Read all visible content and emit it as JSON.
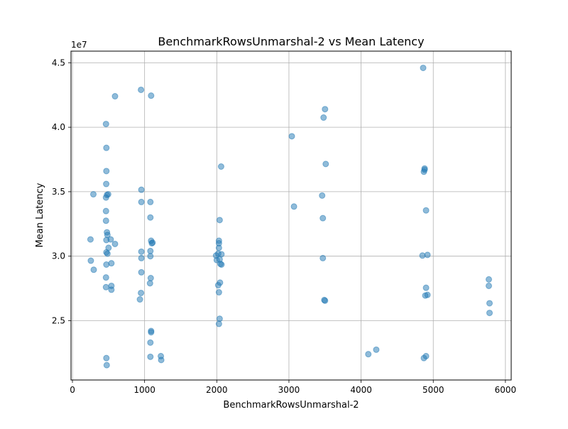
{
  "chart_data": {
    "type": "scatter",
    "title": "BenchmarkRowsUnmarshal-2 vs Mean Latency",
    "xlabel": "BenchmarkRowsUnmarshal-2",
    "ylabel": "Mean Latency",
    "y_multiplier_label": "1e7",
    "xlim": [
      -20,
      6080
    ],
    "ylim": [
      20400000,
      45900000
    ],
    "x_ticks": [
      0,
      1000,
      2000,
      3000,
      4000,
      5000,
      6000
    ],
    "x_tick_labels": [
      "0",
      "1000",
      "2000",
      "3000",
      "4000",
      "5000",
      "6000"
    ],
    "y_ticks": [
      25000000,
      30000000,
      35000000,
      40000000,
      45000000
    ],
    "y_tick_labels": [
      "2.5",
      "3.0",
      "3.5",
      "4.0",
      "4.5"
    ],
    "grid": true,
    "marker_color": "#1f77b4",
    "marker_alpha": 0.5,
    "series": [
      {
        "points": [
          [
            250,
            31300000
          ],
          [
            255,
            29650000
          ],
          [
            290,
            34800000
          ],
          [
            295,
            28950000
          ],
          [
            465,
            40250000
          ],
          [
            470,
            38400000
          ],
          [
            470,
            36600000
          ],
          [
            468,
            35600000
          ],
          [
            478,
            34750000
          ],
          [
            465,
            34550000
          ],
          [
            465,
            33500000
          ],
          [
            465,
            32750000
          ],
          [
            478,
            31850000
          ],
          [
            485,
            31650000
          ],
          [
            470,
            31250000
          ],
          [
            500,
            30650000
          ],
          [
            470,
            30300000
          ],
          [
            485,
            30200000
          ],
          [
            470,
            29350000
          ],
          [
            465,
            28350000
          ],
          [
            465,
            27600000
          ],
          [
            470,
            22100000
          ],
          [
            475,
            21550000
          ],
          [
            495,
            34800000
          ],
          [
            530,
            31300000
          ],
          [
            540,
            29450000
          ],
          [
            540,
            27700000
          ],
          [
            540,
            27400000
          ],
          [
            590,
            30950000
          ],
          [
            590,
            42400000
          ],
          [
            950,
            42900000
          ],
          [
            955,
            35150000
          ],
          [
            955,
            34200000
          ],
          [
            955,
            30350000
          ],
          [
            955,
            29850000
          ],
          [
            955,
            28750000
          ],
          [
            950,
            27150000
          ],
          [
            935,
            26650000
          ],
          [
            1090,
            42450000
          ],
          [
            1080,
            34200000
          ],
          [
            1080,
            33000000
          ],
          [
            1090,
            31200000
          ],
          [
            1110,
            31050000
          ],
          [
            1100,
            31000000
          ],
          [
            1080,
            30400000
          ],
          [
            1080,
            30000000
          ],
          [
            1085,
            28300000
          ],
          [
            1075,
            27900000
          ],
          [
            1090,
            24200000
          ],
          [
            1090,
            24100000
          ],
          [
            1080,
            23300000
          ],
          [
            1080,
            22200000
          ],
          [
            1225,
            22250000
          ],
          [
            1230,
            21950000
          ],
          [
            1990,
            30050000
          ],
          [
            2000,
            29700000
          ],
          [
            2030,
            31200000
          ],
          [
            2030,
            31000000
          ],
          [
            2030,
            30650000
          ],
          [
            2020,
            30200000
          ],
          [
            2050,
            29400000
          ],
          [
            2065,
            29350000
          ],
          [
            2065,
            30150000
          ],
          [
            2040,
            29750000
          ],
          [
            2045,
            27950000
          ],
          [
            2020,
            27750000
          ],
          [
            2030,
            27200000
          ],
          [
            2040,
            25150000
          ],
          [
            2030,
            24750000
          ],
          [
            2040,
            32800000
          ],
          [
            2060,
            36950000
          ],
          [
            3040,
            39300000
          ],
          [
            3070,
            33850000
          ],
          [
            3460,
            34700000
          ],
          [
            3470,
            32950000
          ],
          [
            3470,
            29850000
          ],
          [
            3480,
            40750000
          ],
          [
            3500,
            41400000
          ],
          [
            3510,
            37150000
          ],
          [
            3490,
            26600000
          ],
          [
            3500,
            26550000
          ],
          [
            4100,
            22400000
          ],
          [
            4210,
            22750000
          ],
          [
            4860,
            44600000
          ],
          [
            4850,
            30050000
          ],
          [
            4870,
            36550000
          ],
          [
            4880,
            36800000
          ],
          [
            4880,
            36700000
          ],
          [
            4900,
            33550000
          ],
          [
            4920,
            30100000
          ],
          [
            4900,
            27550000
          ],
          [
            4890,
            26950000
          ],
          [
            4920,
            27000000
          ],
          [
            4900,
            22250000
          ],
          [
            4870,
            22100000
          ],
          [
            5770,
            28200000
          ],
          [
            5770,
            27700000
          ],
          [
            5780,
            26350000
          ],
          [
            5780,
            25600000
          ]
        ]
      }
    ]
  }
}
